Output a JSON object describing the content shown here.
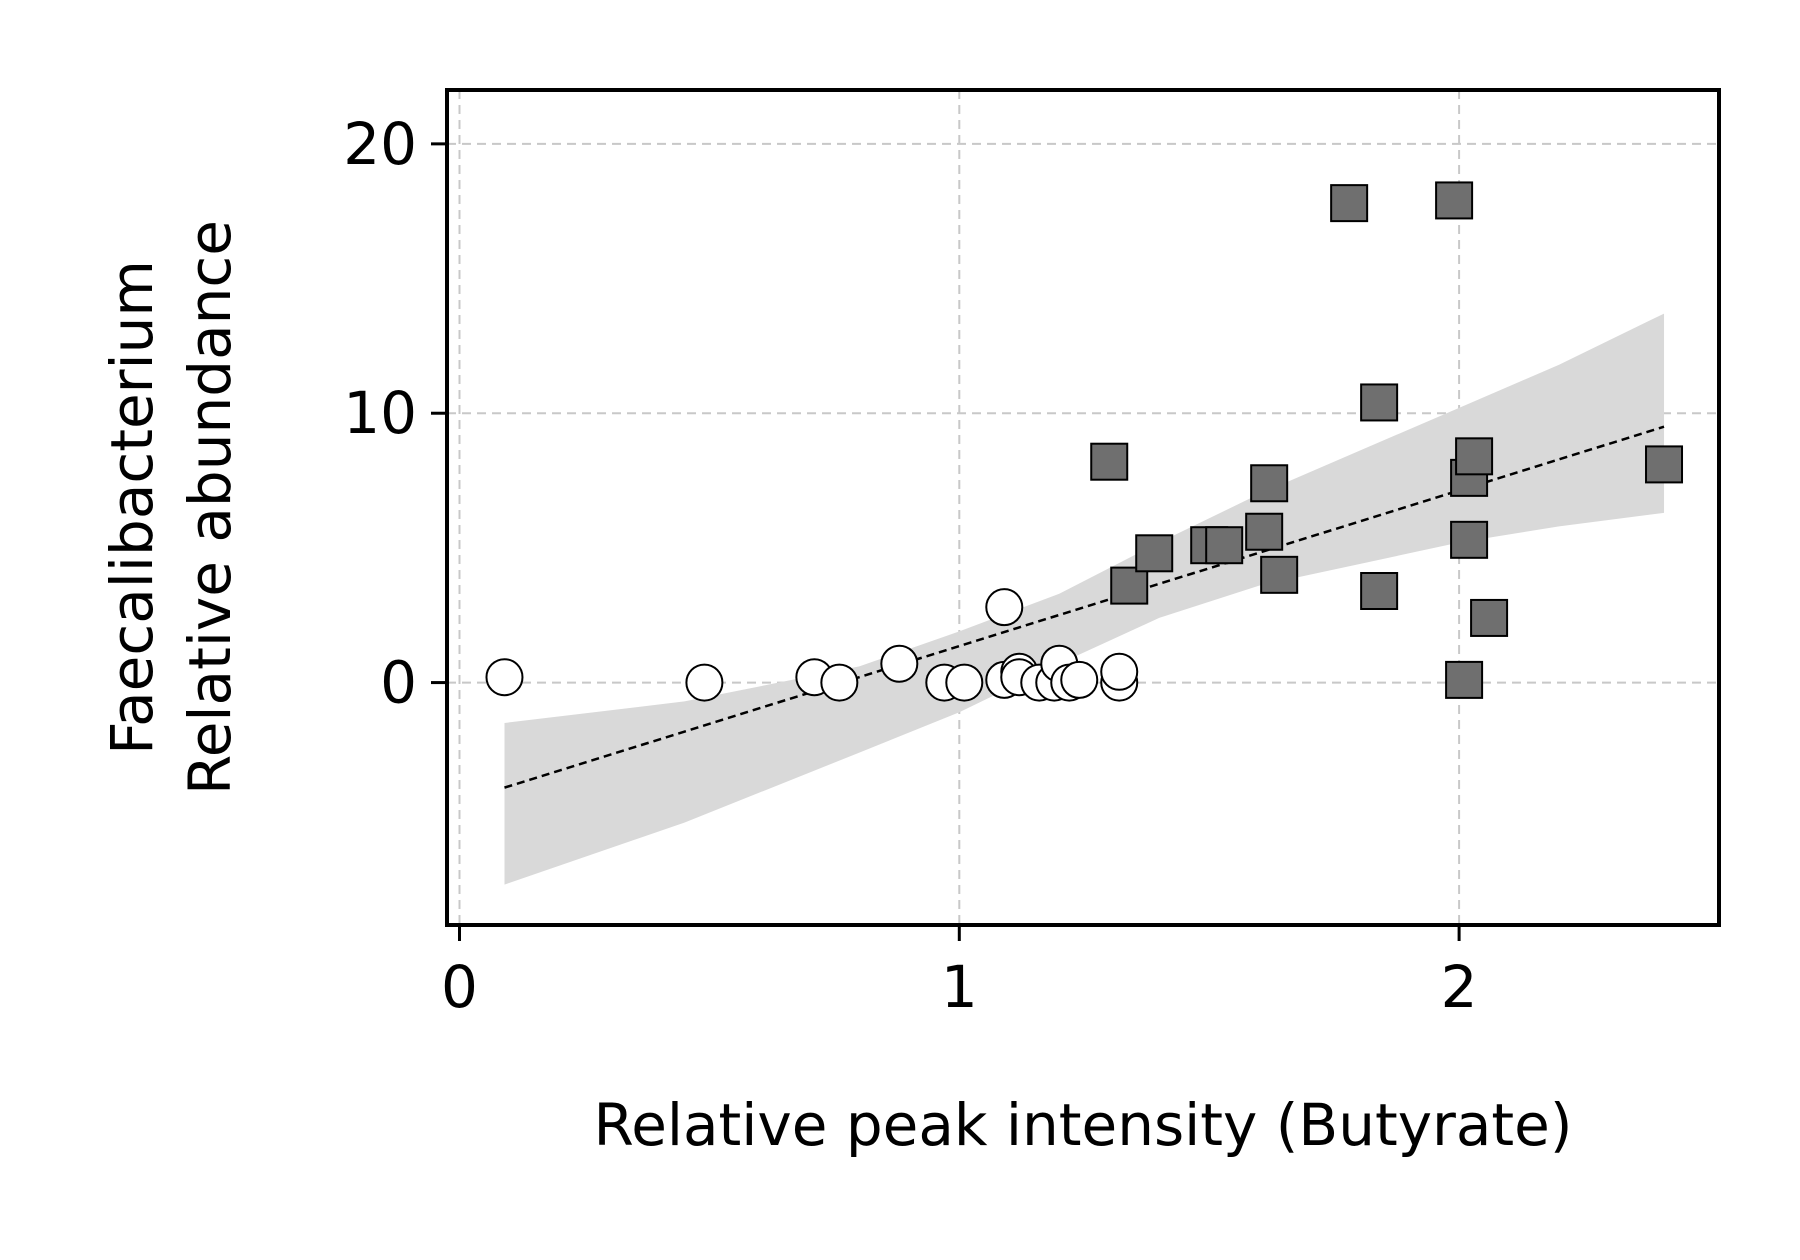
{
  "chart_data": {
    "type": "scatter",
    "xlabel": "Relative peak intensity (Butyrate)",
    "ylabel_lines": [
      "Faecalibacterium",
      "Relative abundance"
    ],
    "xlim": [
      -0.025,
      2.52
    ],
    "ylim": [
      -9.0,
      22.0
    ],
    "xticks": [
      0,
      1,
      2
    ],
    "yticks": [
      0,
      10,
      20
    ],
    "xtick_labels": [
      "0",
      "1",
      "2"
    ],
    "ytick_labels": [
      "0",
      "10",
      "20"
    ],
    "grid": true,
    "series": [
      {
        "marker": "circle",
        "fill": "#ffffff",
        "points": [
          [
            0.09,
            0.2
          ],
          [
            0.49,
            0.0
          ],
          [
            0.71,
            0.2
          ],
          [
            0.76,
            0.0
          ],
          [
            0.88,
            0.7
          ],
          [
            0.97,
            0.0
          ],
          [
            1.01,
            0.0
          ],
          [
            1.09,
            2.8
          ],
          [
            1.09,
            0.1
          ],
          [
            1.12,
            0.4
          ],
          [
            1.12,
            0.2
          ],
          [
            1.16,
            0.0
          ],
          [
            1.19,
            0.0
          ],
          [
            1.2,
            0.7
          ],
          [
            1.22,
            0.0
          ],
          [
            1.24,
            0.1
          ],
          [
            1.32,
            0.0
          ],
          [
            1.32,
            0.4
          ]
        ]
      },
      {
        "marker": "square",
        "fill": "#6f6f6f",
        "points": [
          [
            1.3,
            8.2
          ],
          [
            1.34,
            3.6
          ],
          [
            1.39,
            4.8
          ],
          [
            1.5,
            5.1
          ],
          [
            1.53,
            5.1
          ],
          [
            1.61,
            5.6
          ],
          [
            1.62,
            7.4
          ],
          [
            1.64,
            4.0
          ],
          [
            1.78,
            17.8
          ],
          [
            1.84,
            10.4
          ],
          [
            1.84,
            3.4
          ],
          [
            1.99,
            17.9
          ],
          [
            2.01,
            0.1
          ],
          [
            2.02,
            7.6
          ],
          [
            2.02,
            5.3
          ],
          [
            2.03,
            8.4
          ],
          [
            2.06,
            2.4
          ],
          [
            2.41,
            8.1
          ]
        ]
      }
    ],
    "fit_line": {
      "x": [
        0.09,
        2.41
      ],
      "y": [
        -3.9,
        9.5
      ]
    },
    "confidence_band": {
      "x": [
        0.09,
        0.45,
        0.8,
        1.0,
        1.2,
        1.4,
        1.6,
        1.8,
        2.0,
        2.2,
        2.41
      ],
      "upper": [
        -1.5,
        -0.7,
        0.6,
        1.9,
        3.3,
        5.2,
        7.0,
        8.6,
        10.2,
        11.8,
        13.7
      ],
      "lower": [
        -7.5,
        -5.2,
        -2.6,
        -1.1,
        0.7,
        2.4,
        3.6,
        4.4,
        5.2,
        5.8,
        6.3
      ]
    },
    "colors": {
      "band": "#d9d9d9",
      "grid": "#c8c8c8",
      "square_fill": "#6f6f6f",
      "circle_fill": "#ffffff",
      "edge": "#000000"
    }
  }
}
